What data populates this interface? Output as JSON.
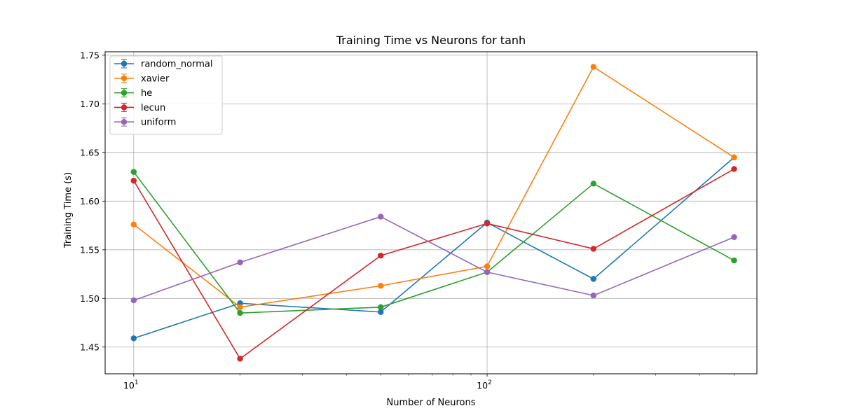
{
  "chart_data": {
    "type": "line",
    "title": "Training Time vs Neurons for tanh",
    "xlabel": "Number of Neurons",
    "ylabel": "Training Time (s)",
    "x_scale": "log",
    "x": [
      10,
      20,
      50,
      100,
      200,
      500
    ],
    "xlim": [
      8.3,
      580
    ],
    "ylim": [
      1.4225,
      1.7535
    ],
    "yticks": [
      1.45,
      1.5,
      1.55,
      1.6,
      1.65,
      1.7,
      1.75
    ],
    "ytick_labels": [
      "1.45",
      "1.50",
      "1.55",
      "1.60",
      "1.65",
      "1.70",
      "1.75"
    ],
    "xtick_labels": [
      {
        "value": 10,
        "base": "10",
        "exp": "1"
      },
      {
        "value": 100,
        "base": "10",
        "exp": "2"
      }
    ],
    "grid": true,
    "legend_position": "top-left",
    "marker": "circle",
    "error_bars": true,
    "series": [
      {
        "name": "random_normal",
        "color": "#1f77b4",
        "values": [
          1.459,
          1.495,
          1.486,
          1.578,
          1.52,
          1.645
        ]
      },
      {
        "name": "xavier",
        "color": "#ff7f0e",
        "values": [
          1.576,
          1.491,
          1.513,
          1.533,
          1.738,
          1.645
        ]
      },
      {
        "name": "he",
        "color": "#2ca02c",
        "values": [
          1.63,
          1.485,
          1.491,
          1.527,
          1.618,
          1.539
        ]
      },
      {
        "name": "lecun",
        "color": "#d62728",
        "values": [
          1.621,
          1.438,
          1.544,
          1.577,
          1.551,
          1.633
        ]
      },
      {
        "name": "uniform",
        "color": "#9467bd",
        "values": [
          1.498,
          1.537,
          1.584,
          1.527,
          1.503,
          1.563
        ]
      }
    ]
  }
}
